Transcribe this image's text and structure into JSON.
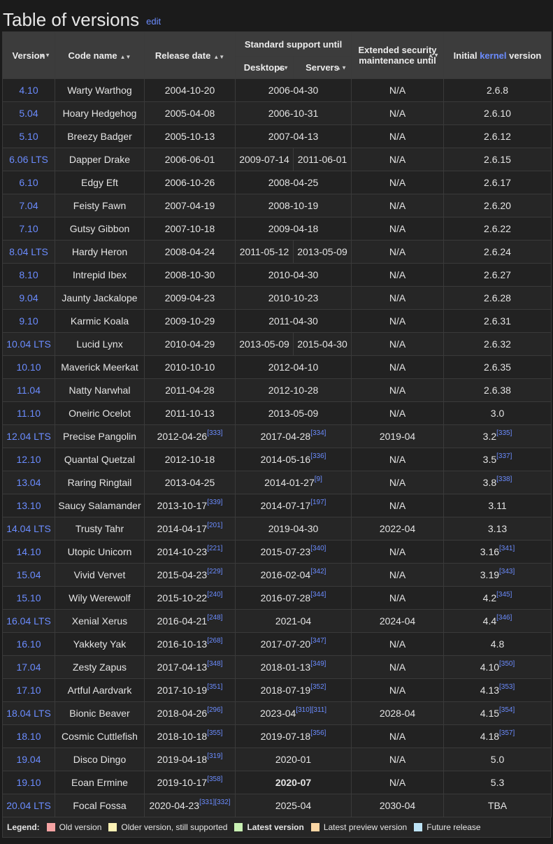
{
  "title": "Table of versions",
  "edit_label": "edit",
  "headers": {
    "version": "Version",
    "codename": "Code name",
    "release": "Release date",
    "standard": "Standard support until",
    "desktops": "Desktops",
    "servers": "Servers",
    "esm_line1": "Extended security",
    "esm_line2": "maintenance until",
    "kernel_prefix": "Initial ",
    "kernel_link": "kernel",
    "kernel_suffix": " version",
    "sort_glyph": "▲▼"
  },
  "rows": [
    {
      "v": "4.10",
      "c": "Warty Warthog",
      "r": "2004-10-20",
      "rs": "",
      "d": "2006-04-30",
      "ds": "",
      "e": "N/A",
      "k": "2.6.8",
      "ks": ""
    },
    {
      "v": "5.04",
      "c": "Hoary Hedgehog",
      "r": "2005-04-08",
      "rs": "",
      "d": "2006-10-31",
      "ds": "",
      "e": "N/A",
      "k": "2.6.10",
      "ks": ""
    },
    {
      "v": "5.10",
      "c": "Breezy Badger",
      "r": "2005-10-13",
      "rs": "",
      "d": "2007-04-13",
      "ds": "",
      "e": "N/A",
      "k": "2.6.12",
      "ks": ""
    },
    {
      "v": "6.06 LTS",
      "c": "Dapper Drake",
      "r": "2006-06-01",
      "rs": "",
      "split": true,
      "d": "2009-07-14",
      "s": "2011-06-01",
      "e": "N/A",
      "k": "2.6.15",
      "ks": ""
    },
    {
      "v": "6.10",
      "c": "Edgy Eft",
      "r": "2006-10-26",
      "rs": "",
      "d": "2008-04-25",
      "ds": "",
      "e": "N/A",
      "k": "2.6.17",
      "ks": ""
    },
    {
      "v": "7.04",
      "c": "Feisty Fawn",
      "r": "2007-04-19",
      "rs": "",
      "d": "2008-10-19",
      "ds": "",
      "e": "N/A",
      "k": "2.6.20",
      "ks": ""
    },
    {
      "v": "7.10",
      "c": "Gutsy Gibbon",
      "r": "2007-10-18",
      "rs": "",
      "d": "2009-04-18",
      "ds": "",
      "e": "N/A",
      "k": "2.6.22",
      "ks": ""
    },
    {
      "v": "8.04 LTS",
      "c": "Hardy Heron",
      "r": "2008-04-24",
      "rs": "",
      "split": true,
      "d": "2011-05-12",
      "s": "2013-05-09",
      "e": "N/A",
      "k": "2.6.24",
      "ks": ""
    },
    {
      "v": "8.10",
      "c": "Intrepid Ibex",
      "r": "2008-10-30",
      "rs": "",
      "d": "2010-04-30",
      "ds": "",
      "e": "N/A",
      "k": "2.6.27",
      "ks": ""
    },
    {
      "v": "9.04",
      "c": "Jaunty Jackalope",
      "r": "2009-04-23",
      "rs": "",
      "d": "2010-10-23",
      "ds": "",
      "e": "N/A",
      "k": "2.6.28",
      "ks": ""
    },
    {
      "v": "9.10",
      "c": "Karmic Koala",
      "r": "2009-10-29",
      "rs": "",
      "d": "2011-04-30",
      "ds": "",
      "e": "N/A",
      "k": "2.6.31",
      "ks": ""
    },
    {
      "v": "10.04 LTS",
      "c": "Lucid Lynx",
      "r": "2010-04-29",
      "rs": "",
      "split": true,
      "d": "2013-05-09",
      "s": "2015-04-30",
      "e": "N/A",
      "k": "2.6.32",
      "ks": ""
    },
    {
      "v": "10.10",
      "c": "Maverick Meerkat",
      "r": "2010-10-10",
      "rs": "",
      "d": "2012-04-10",
      "ds": "",
      "e": "N/A",
      "k": "2.6.35",
      "ks": ""
    },
    {
      "v": "11.04",
      "c": "Natty Narwhal",
      "r": "2011-04-28",
      "rs": "",
      "d": "2012-10-28",
      "ds": "",
      "e": "N/A",
      "k": "2.6.38",
      "ks": ""
    },
    {
      "v": "11.10",
      "c": "Oneiric Ocelot",
      "r": "2011-10-13",
      "rs": "",
      "d": "2013-05-09",
      "ds": "",
      "e": "N/A",
      "k": "3.0",
      "ks": ""
    },
    {
      "v": "12.04 LTS",
      "c": "Precise Pangolin",
      "r": "2012-04-26",
      "rs": "[333]",
      "d": "2017-04-28",
      "ds": "[334]",
      "e": "2019-04",
      "k": "3.2",
      "ks": "[335]"
    },
    {
      "v": "12.10",
      "c": "Quantal Quetzal",
      "r": "2012-10-18",
      "rs": "",
      "d": "2014-05-16",
      "ds": "[336]",
      "e": "N/A",
      "k": "3.5",
      "ks": "[337]"
    },
    {
      "v": "13.04",
      "c": "Raring Ringtail",
      "r": "2013-04-25",
      "rs": "",
      "d": "2014-01-27",
      "ds": "[9]",
      "e": "N/A",
      "k": "3.8",
      "ks": "[338]"
    },
    {
      "v": "13.10",
      "c": "Saucy Salamander",
      "r": "2013-10-17",
      "rs": "[339]",
      "d": "2014-07-17",
      "ds": "[197]",
      "e": "N/A",
      "k": "3.11",
      "ks": ""
    },
    {
      "v": "14.04 LTS",
      "c": "Trusty Tahr",
      "r": "2014-04-17",
      "rs": "[201]",
      "d": "2019-04-30",
      "ds": "",
      "e": "2022-04",
      "k": "3.13",
      "ks": ""
    },
    {
      "v": "14.10",
      "c": "Utopic Unicorn",
      "r": "2014-10-23",
      "rs": "[221]",
      "d": "2015-07-23",
      "ds": "[340]",
      "e": "N/A",
      "k": "3.16",
      "ks": "[341]"
    },
    {
      "v": "15.04",
      "c": "Vivid Vervet",
      "r": "2015-04-23",
      "rs": "[229]",
      "d": "2016-02-04",
      "ds": "[342]",
      "e": "N/A",
      "k": "3.19",
      "ks": "[343]"
    },
    {
      "v": "15.10",
      "c": "Wily Werewolf",
      "r": "2015-10-22",
      "rs": "[240]",
      "d": "2016-07-28",
      "ds": "[344]",
      "e": "N/A",
      "k": "4.2",
      "ks": "[345]"
    },
    {
      "v": "16.04 LTS",
      "c": "Xenial Xerus",
      "r": "2016-04-21",
      "rs": "[248]",
      "d": "2021-04",
      "ds": "",
      "e": "2024-04",
      "k": "4.4",
      "ks": "[346]"
    },
    {
      "v": "16.10",
      "c": "Yakkety Yak",
      "r": "2016-10-13",
      "rs": "[268]",
      "d": "2017-07-20",
      "ds": "[347]",
      "e": "N/A",
      "k": "4.8",
      "ks": ""
    },
    {
      "v": "17.04",
      "c": "Zesty Zapus",
      "r": "2017-04-13",
      "rs": "[348]",
      "d": "2018-01-13",
      "ds": "[349]",
      "e": "N/A",
      "k": "4.10",
      "ks": "[350]"
    },
    {
      "v": "17.10",
      "c": "Artful Aardvark",
      "r": "2017-10-19",
      "rs": "[351]",
      "d": "2018-07-19",
      "ds": "[352]",
      "e": "N/A",
      "k": "4.13",
      "ks": "[353]"
    },
    {
      "v": "18.04 LTS",
      "c": "Bionic Beaver",
      "r": "2018-04-26",
      "rs": "[296]",
      "d": "2023-04",
      "ds": "[310][311]",
      "e": "2028-04",
      "k": "4.15",
      "ks": "[354]"
    },
    {
      "v": "18.10",
      "c": "Cosmic Cuttlefish",
      "r": "2018-10-18",
      "rs": "[355]",
      "d": "2019-07-18",
      "ds": "[356]",
      "e": "N/A",
      "k": "4.18",
      "ks": "[357]"
    },
    {
      "v": "19.04",
      "c": "Disco Dingo",
      "r": "2019-04-18",
      "rs": "[319]",
      "d": "2020-01",
      "ds": "",
      "e": "N/A",
      "k": "5.0",
      "ks": ""
    },
    {
      "v": "19.10",
      "c": "Eoan Ermine",
      "r": "2019-10-17",
      "rs": "[358]",
      "d": "2020-07",
      "ds": "",
      "bold": true,
      "e": "N/A",
      "k": "5.3",
      "ks": ""
    },
    {
      "v": "20.04 LTS",
      "c": "Focal Fossa",
      "r": "2020-04-23",
      "rs": "[331][332]",
      "d": "2025-04",
      "ds": "",
      "e": "2030-04",
      "k": "TBA",
      "ks": ""
    }
  ],
  "legend": {
    "label": "Legend:",
    "items": [
      {
        "label": "Old version",
        "color": "#f5a3a3",
        "bold": false
      },
      {
        "label": "Older version, still supported",
        "color": "#fcf1b4",
        "bold": false
      },
      {
        "label": "Latest version",
        "color": "#c9f1b4",
        "bold": true
      },
      {
        "label": "Latest preview version",
        "color": "#fbd6a4",
        "bold": false
      },
      {
        "label": "Future release",
        "color": "#bde3f6",
        "bold": false
      }
    ]
  },
  "colors": {
    "link": "#6b8cff",
    "header_bg": "#3c3c3c",
    "row_bg": "#222222"
  }
}
